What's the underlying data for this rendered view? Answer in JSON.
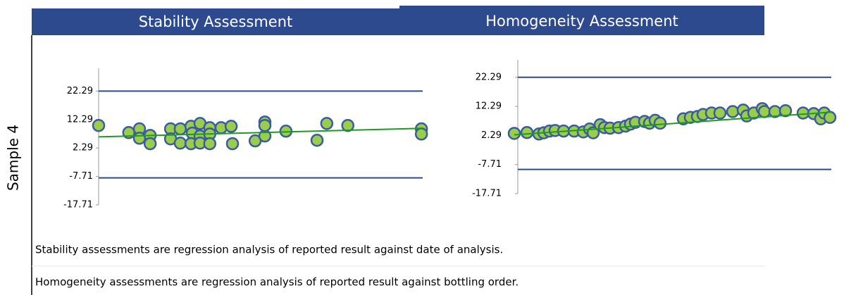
{
  "row_label": "Sample 4",
  "notes": [
    "Stability assessments are regression analysis of reported result against date of analysis.",
    "Homogeneity assessments are regression analysis of reported result against bottling order."
  ],
  "chart_data": [
    {
      "type": "scatter",
      "title": "Stability Assessment",
      "x": [
        0,
        9.3,
        12.6,
        12.6,
        15.9,
        15.9,
        22.2,
        22.2,
        25.2,
        25.2,
        28.5,
        28.9,
        28.5,
        31.3,
        31.3,
        31.3,
        34.3,
        34.3,
        34.3,
        37.8,
        40.9,
        41.3,
        48.3,
        51.3,
        51.3,
        51.3,
        57.8,
        67.4,
        70.4,
        76.9,
        99.6,
        99.6
      ],
      "values": [
        10.2,
        7.7,
        9.0,
        5.7,
        6.7,
        3.8,
        9.0,
        5.5,
        9.0,
        4.0,
        9.9,
        7.5,
        3.8,
        10.9,
        6.5,
        4.0,
        9.4,
        7.2,
        3.8,
        9.4,
        9.9,
        3.8,
        4.8,
        11.4,
        6.5,
        10.2,
        8.2,
        5.0,
        10.9,
        10.2,
        9.0,
        7.2
      ],
      "xlim": [
        0,
        100
      ],
      "ylim": [
        -17.71,
        30.29
      ],
      "yticks": [
        22.29,
        12.29,
        2.29,
        -7.71,
        -17.71
      ],
      "trend_x": [
        0,
        100
      ],
      "trend_values": [
        6.2,
        9.2
      ],
      "upper_limit": 22.29,
      "lower_limit": -8.2,
      "point_color": "#9acd4c",
      "point_edge": "#3b5ba3",
      "trend_color": "#1e9a1e",
      "limit_color": "#2e4a8f"
    },
    {
      "type": "scatter",
      "title": "Homogeneity Assessment",
      "x": [
        0,
        1.8,
        3.5,
        4.2,
        5.0,
        5.8,
        7.0,
        8.5,
        9.8,
        10.7,
        11.2,
        12.2,
        12.8,
        13.6,
        14.8,
        15.8,
        16.5,
        17.2,
        18.5,
        19.2,
        20.0,
        20.7,
        24.0,
        25.0,
        26.0,
        26.8,
        28.0,
        29.2,
        31.0,
        32.5,
        33.0,
        34.0,
        35.2,
        35.5,
        37.0,
        38.5,
        41.0,
        42.5,
        43.5,
        44.0,
        44.8
      ],
      "values": [
        3.0,
        3.3,
        2.8,
        3.2,
        3.8,
        4.0,
        3.8,
        3.8,
        3.5,
        4.5,
        3.2,
        6.0,
        5.0,
        4.8,
        5.0,
        5.5,
        6.2,
        6.8,
        7.1,
        6.5,
        7.5,
        6.5,
        8.0,
        8.5,
        8.8,
        9.5,
        10.0,
        10.0,
        10.5,
        11.0,
        9.0,
        10.0,
        11.5,
        10.5,
        10.5,
        10.8,
        10.0,
        9.8,
        8.0,
        10.0,
        8.5
      ],
      "xlim": [
        0,
        45
      ],
      "ylim": [
        -17.71,
        28.29
      ],
      "yticks": [
        22.29,
        12.29,
        2.29,
        -7.71,
        -17.71
      ],
      "trend_x": [
        0,
        45
      ],
      "trend_values": [
        2.5,
        10.3
      ],
      "upper_limit": 22.29,
      "lower_limit": -9.4,
      "point_color": "#9acd4c",
      "point_edge": "#3b5ba3",
      "trend_color": "#1e9a1e",
      "limit_color": "#2e4a8f"
    }
  ]
}
